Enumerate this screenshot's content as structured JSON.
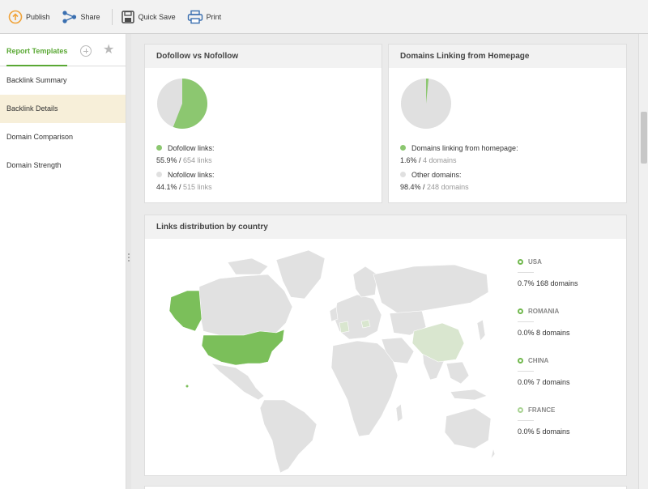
{
  "toolbar": {
    "publish": "Publish",
    "share": "Share",
    "quick_save": "Quick Save",
    "print": "Print"
  },
  "sidebar": {
    "tab": "Report Templates",
    "items": [
      {
        "label": "Backlink Summary"
      },
      {
        "label": "Backlink Details"
      },
      {
        "label": "Domain Comparison"
      },
      {
        "label": "Domain Strength"
      }
    ]
  },
  "dofollow": {
    "title": "Dofollow vs Nofollow",
    "dofollow_label": "Dofollow links:",
    "dofollow_pct": "55.9%",
    "dofollow_count": "654 links",
    "nofollow_label": "Nofollow links:",
    "nofollow_pct": "44.1%",
    "nofollow_count": "515 links",
    "dofollow_fraction": 0.559
  },
  "homepage": {
    "title": "Domains Linking from Homepage",
    "linking_label": "Domains linking from homepage:",
    "linking_pct": "1.6%",
    "linking_count": "4 domains",
    "other_label": "Other domains:",
    "other_pct": "98.4%",
    "other_count": "248 domains",
    "linking_fraction": 0.016
  },
  "country": {
    "title": "Links distribution by country",
    "items": [
      {
        "name": "USA",
        "value": "0.7% 168 domains"
      },
      {
        "name": "ROMANIA",
        "value": "0.0% 8 domains"
      },
      {
        "name": "CHINA",
        "value": "0.0% 7 domains"
      },
      {
        "name": "FRANCE",
        "value": "0.0% 5 domains"
      }
    ]
  },
  "colors": {
    "green": "#8cc770",
    "green_dark": "#72b94f",
    "grey": "#e0e0e0",
    "map_land": "#e1e1e1",
    "usa": "#7bbf5a",
    "light_green": "#d9e6cf"
  }
}
